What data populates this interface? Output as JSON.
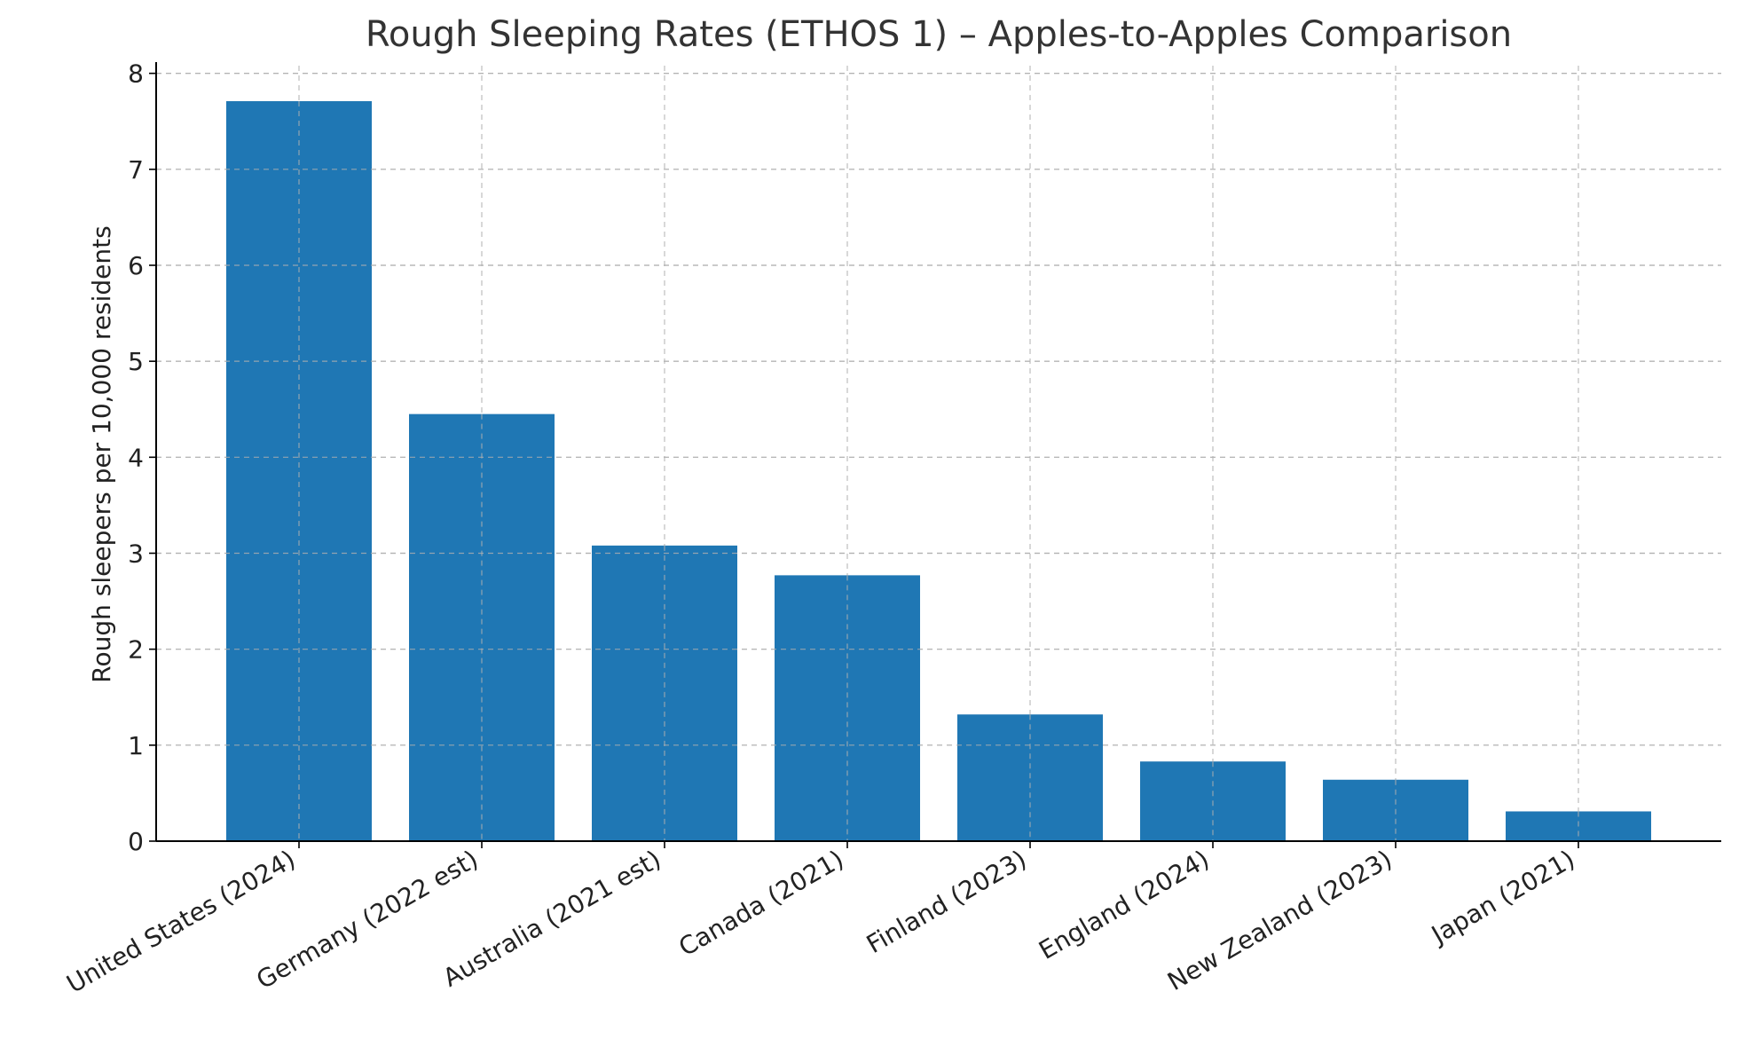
{
  "chart_data": {
    "type": "bar",
    "title": "Rough Sleeping Rates (ETHOS 1) – Apples-to-Apples Comparison",
    "xlabel": "",
    "ylabel": "Rough sleepers per 10,000 residents",
    "categories": [
      "United States (2024)",
      "Germany (2022 est)",
      "Australia (2021 est)",
      "Canada (2021)",
      "Finland (2023)",
      "England (2024)",
      "New Zealand (2023)",
      "Japan (2021)"
    ],
    "values": [
      7.71,
      4.45,
      3.08,
      2.77,
      1.32,
      0.83,
      0.64,
      0.31
    ],
    "ylim": [
      0,
      8.08
    ],
    "yticks": [
      0,
      1,
      2,
      3,
      4,
      5,
      6,
      7,
      8
    ],
    "ytick_labels": [
      "0",
      "1",
      "2",
      "3",
      "4",
      "5",
      "6",
      "7",
      "8"
    ],
    "grid": true,
    "bar_color": "#1f77b4"
  }
}
